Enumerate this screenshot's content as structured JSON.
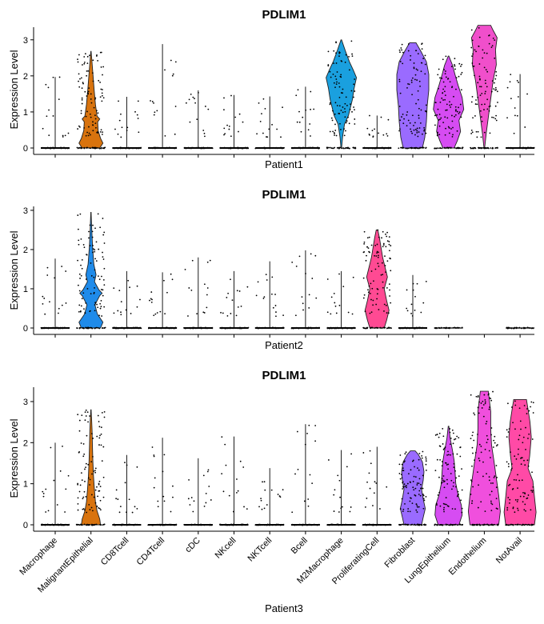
{
  "chart_data": [
    {
      "type": "violin",
      "title": "PDLIM1",
      "xlabel": "Patient1",
      "ylabel": "Expression Level",
      "ylim": [
        0,
        3.35
      ],
      "yticks": [
        0,
        1,
        2,
        3
      ],
      "show_x_tick_labels": false,
      "categories": [
        "Macrophage",
        "MalignantEpithelial",
        "CD8Tcell",
        "CD4Tcell",
        "cDC",
        "NKcell",
        "NKTcell",
        "Bcell",
        "M2Macrophage",
        "ProliferatingCell",
        "Fibroblast",
        "LungEpithelium",
        "Endothelium",
        "NotAvail"
      ],
      "violins": [
        {
          "category": "Macrophage",
          "max": 1.97,
          "color": "#000000",
          "profile": "spike"
        },
        {
          "category": "MalignantEpithelial",
          "max": 2.68,
          "color": "#D8730E",
          "profile": "malignant1"
        },
        {
          "category": "CD8Tcell",
          "max": 1.42,
          "color": "#000000",
          "profile": "spike"
        },
        {
          "category": "CD4Tcell",
          "max": 2.88,
          "color": "#000000",
          "profile": "spike"
        },
        {
          "category": "cDC",
          "max": 1.6,
          "color": "#000000",
          "profile": "spike"
        },
        {
          "category": "NKcell",
          "max": 1.47,
          "color": "#000000",
          "profile": "spike"
        },
        {
          "category": "NKTcell",
          "max": 1.43,
          "color": "#000000",
          "profile": "spike"
        },
        {
          "category": "Bcell",
          "max": 1.7,
          "color": "#000000",
          "profile": "spike"
        },
        {
          "category": "M2Macrophage",
          "max": 3.0,
          "color": "#1AA0DF",
          "profile": "m2mac"
        },
        {
          "category": "ProliferatingCell",
          "max": 0.9,
          "color": "#000000",
          "profile": "spike"
        },
        {
          "category": "Fibroblast",
          "max": 2.92,
          "color": "#9A6BFF",
          "profile": "wide"
        },
        {
          "category": "LungEpithelium",
          "max": 2.55,
          "color": "#D64CF2",
          "profile": "lung1"
        },
        {
          "category": "Endothelium",
          "max": 3.4,
          "color": "#F04FCB",
          "profile": "endo1"
        },
        {
          "category": "NotAvail",
          "max": 2.05,
          "color": "#000000",
          "profile": "spike"
        }
      ]
    },
    {
      "type": "violin",
      "title": "PDLIM1",
      "xlabel": "Patient2",
      "ylabel": "Expression Level",
      "ylim": [
        0,
        3.1
      ],
      "yticks": [
        0,
        1,
        2,
        3
      ],
      "show_x_tick_labels": false,
      "categories": [
        "Macrophage",
        "MalignantEpithelial",
        "CD8Tcell",
        "CD4Tcell",
        "cDC",
        "NKcell",
        "NKTcell",
        "Bcell",
        "M2Macrophage",
        "ProliferatingCell",
        "Fibroblast",
        "LungEpithelium",
        "Endothelium",
        "NotAvail"
      ],
      "violins": [
        {
          "category": "Macrophage",
          "max": 1.77,
          "color": "#000000",
          "profile": "spike"
        },
        {
          "category": "MalignantEpithelial",
          "max": 2.95,
          "color": "#1F8BEA",
          "profile": "malignant2"
        },
        {
          "category": "CD8Tcell",
          "max": 1.45,
          "color": "#000000",
          "profile": "spike"
        },
        {
          "category": "CD4Tcell",
          "max": 1.42,
          "color": "#000000",
          "profile": "spike"
        },
        {
          "category": "cDC",
          "max": 1.8,
          "color": "#000000",
          "profile": "spike"
        },
        {
          "category": "NKcell",
          "max": 1.45,
          "color": "#000000",
          "profile": "spike"
        },
        {
          "category": "NKTcell",
          "max": 1.7,
          "color": "#000000",
          "profile": "spike"
        },
        {
          "category": "Bcell",
          "max": 1.98,
          "color": "#000000",
          "profile": "spike"
        },
        {
          "category": "M2Macrophage",
          "max": 1.45,
          "color": "#000000",
          "profile": "spike"
        },
        {
          "category": "ProliferatingCell",
          "max": 2.5,
          "color": "#FF4A93",
          "profile": "prolif2"
        },
        {
          "category": "Fibroblast",
          "max": 1.35,
          "color": "#000000",
          "profile": "spike"
        },
        {
          "category": "LungEpithelium",
          "max": 0,
          "color": "#000000",
          "profile": "flat"
        },
        {
          "category": "Endothelium",
          "max": 0,
          "color": "#000000",
          "profile": "none"
        },
        {
          "category": "NotAvail",
          "max": 0,
          "color": "#000000",
          "profile": "flat"
        }
      ]
    },
    {
      "type": "violin",
      "title": "PDLIM1",
      "xlabel": "Patient3",
      "ylabel": "Expression Level",
      "ylim": [
        0,
        3.35
      ],
      "yticks": [
        0,
        1,
        2,
        3
      ],
      "show_x_tick_labels": true,
      "categories": [
        "Macrophage",
        "MalignantEpithelial",
        "CD8Tcell",
        "CD4Tcell",
        "cDC",
        "NKcell",
        "NKTcell",
        "Bcell",
        "M2Macrophage",
        "ProliferatingCell",
        "Fibroblast",
        "LungEpithelium",
        "Endothelium",
        "NotAvail"
      ],
      "violins": [
        {
          "category": "Macrophage",
          "max": 2.0,
          "color": "#000000",
          "profile": "spike"
        },
        {
          "category": "MalignantEpithelial",
          "max": 2.8,
          "color": "#D8730E",
          "profile": "malignant3"
        },
        {
          "category": "CD8Tcell",
          "max": 1.7,
          "color": "#000000",
          "profile": "spike"
        },
        {
          "category": "CD4Tcell",
          "max": 2.12,
          "color": "#000000",
          "profile": "spike"
        },
        {
          "category": "cDC",
          "max": 1.62,
          "color": "#000000",
          "profile": "spike"
        },
        {
          "category": "NKcell",
          "max": 2.15,
          "color": "#000000",
          "profile": "spike"
        },
        {
          "category": "NKTcell",
          "max": 1.38,
          "color": "#000000",
          "profile": "spike"
        },
        {
          "category": "Bcell",
          "max": 2.45,
          "color": "#000000",
          "profile": "spike"
        },
        {
          "category": "M2Macrophage",
          "max": 1.82,
          "color": "#000000",
          "profile": "spike"
        },
        {
          "category": "ProliferatingCell",
          "max": 1.9,
          "color": "#000000",
          "profile": "spike"
        },
        {
          "category": "Fibroblast",
          "max": 1.8,
          "color": "#9A6BFF",
          "profile": "fibro3"
        },
        {
          "category": "LungEpithelium",
          "max": 2.4,
          "color": "#D64CF2",
          "profile": "lung3"
        },
        {
          "category": "Endothelium",
          "max": 3.25,
          "color": "#F04FDD",
          "profile": "endo3"
        },
        {
          "category": "NotAvail",
          "max": 3.05,
          "color": "#FF4AA6",
          "profile": "notavail3"
        }
      ]
    }
  ]
}
